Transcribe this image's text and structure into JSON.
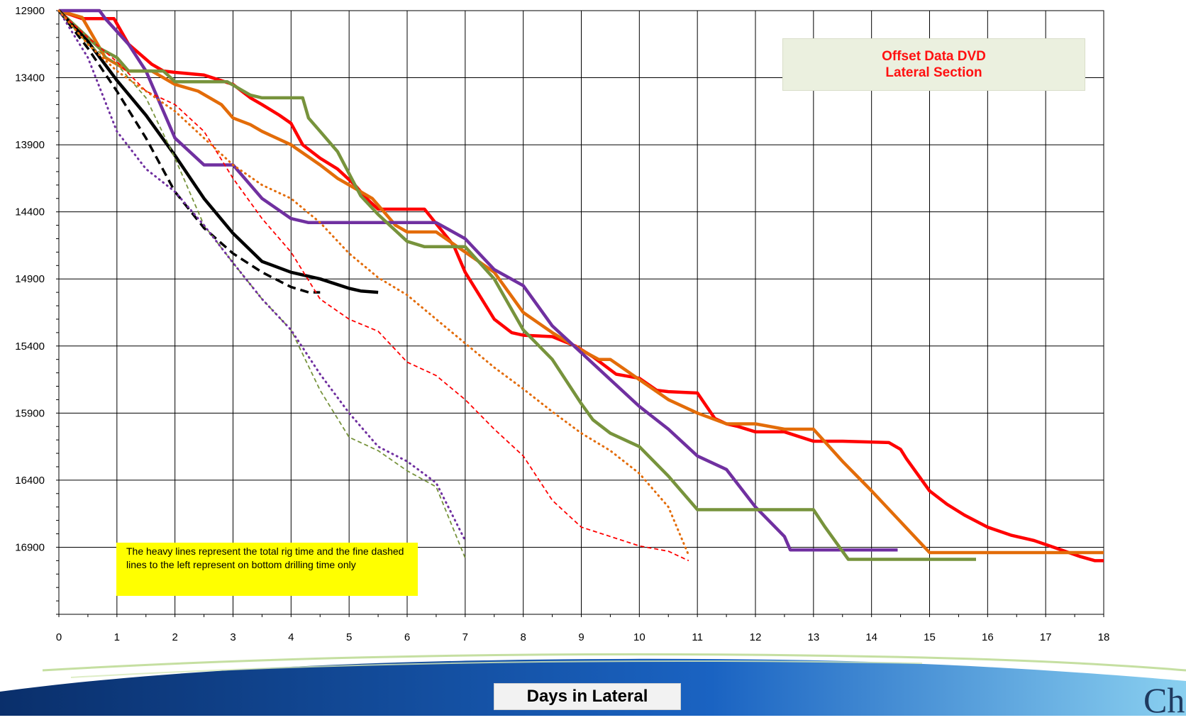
{
  "chart_data": {
    "type": "line",
    "title": "",
    "legend_title": [
      "Offset Data DVD",
      "Lateral Section"
    ],
    "xlabel": "Days in Lateral",
    "ylabel": "",
    "xlim": [
      0,
      18
    ],
    "ylim": [
      17400,
      12900
    ],
    "y_inverted": true,
    "x_ticks": [
      0,
      1,
      2,
      3,
      4,
      5,
      6,
      7,
      8,
      9,
      10,
      11,
      12,
      13,
      14,
      15,
      16,
      17,
      18
    ],
    "y_ticks": [
      12900,
      13400,
      13900,
      14400,
      14900,
      15400,
      15900,
      16400,
      16900
    ],
    "grid": true,
    "legend_position": "top-right",
    "annotation": "The heavy lines represent the total rig time and the fine dashed lines to the left represent on bottom drilling time only",
    "series": [
      {
        "color": "#ff0000",
        "style": "solid",
        "x": [
          0,
          0.4,
          0.95,
          1.2,
          1.6,
          1.8,
          2,
          2.5,
          3,
          3.3,
          3.5,
          3.8,
          4,
          4.2,
          4.5,
          4.8,
          5.1,
          5.3,
          5.5,
          6.3,
          6.8,
          7,
          7.5,
          7.8,
          8,
          8.5,
          8.9,
          9.2,
          9.6,
          10.0,
          10.3,
          10.5,
          11,
          11.3,
          11.5,
          11.7,
          12,
          12.5,
          13,
          13.5,
          14.3,
          14.5,
          14.6,
          15,
          15.3,
          15.6,
          16,
          16.4,
          16.8,
          17.2,
          17.6,
          17.85,
          18
        ],
        "y": [
          12900,
          12960,
          12960,
          13150,
          13300,
          13350,
          13360,
          13380,
          13450,
          13550,
          13600,
          13680,
          13740,
          13900,
          14000,
          14080,
          14200,
          14300,
          14380,
          14380,
          14650,
          14850,
          15200,
          15300,
          15320,
          15330,
          15400,
          15480,
          15610,
          15640,
          15730,
          15740,
          15750,
          15940,
          15980,
          16000,
          16040,
          16040,
          16110,
          16110,
          16120,
          16170,
          16240,
          16480,
          16580,
          16660,
          16750,
          16810,
          16850,
          16910,
          16970,
          17000,
          17000
        ]
      },
      {
        "color": "#e36c09",
        "style": "solid",
        "x": [
          0,
          0.4,
          0.8,
          1.2,
          1.6,
          2,
          2.4,
          2.8,
          3,
          3.3,
          3.5,
          4,
          4.5,
          4.8,
          5,
          5.4,
          5.5,
          5.8,
          6,
          6.5,
          7,
          7.5,
          8,
          8.5,
          9,
          9.3,
          9.5,
          10,
          10.5,
          11,
          11.5,
          12,
          12.5,
          13,
          13.5,
          14,
          14.5,
          15,
          18
        ],
        "y": [
          12900,
          12950,
          13250,
          13350,
          13350,
          13450,
          13500,
          13600,
          13700,
          13750,
          13800,
          13900,
          14050,
          14150,
          14200,
          14300,
          14350,
          14500,
          14550,
          14550,
          14700,
          14850,
          15150,
          15300,
          15430,
          15500,
          15500,
          15650,
          15800,
          15900,
          15980,
          15980,
          16020,
          16020,
          16260,
          16480,
          16710,
          16940,
          16940
        ]
      },
      {
        "color": "#7030a0",
        "style": "solid",
        "x": [
          0,
          0.7,
          0.8,
          1.2,
          1.5,
          2,
          2.5,
          3,
          3.1,
          3.5,
          4,
          4.3,
          5,
          5.5,
          6,
          6.5,
          7,
          7.5,
          8,
          8.5,
          9,
          9.5,
          10,
          10.5,
          11,
          11.5,
          12,
          12.5,
          12.6,
          13,
          14,
          14.45
        ],
        "y": [
          12900,
          12900,
          12960,
          13150,
          13350,
          13850,
          14050,
          14050,
          14100,
          14300,
          14450,
          14480,
          14480,
          14480,
          14480,
          14480,
          14600,
          14830,
          14950,
          15250,
          15450,
          15650,
          15850,
          16020,
          16220,
          16320,
          16600,
          16820,
          16920,
          16920,
          16920,
          16920
        ]
      },
      {
        "color": "#77933c",
        "style": "solid",
        "x": [
          0,
          0.7,
          1.0,
          1.2,
          1.5,
          1.8,
          2,
          2.5,
          2.9,
          3.1,
          3.3,
          3.5,
          4.2,
          4.3,
          4.5,
          4.8,
          5.2,
          5.5,
          6,
          6.3,
          7,
          7.5,
          8,
          8.5,
          9,
          9.2,
          9.5,
          10,
          10.5,
          11,
          11.5,
          12,
          13,
          13.2,
          13.6,
          14,
          15.8
        ],
        "y": [
          12900,
          13180,
          13250,
          13350,
          13350,
          13350,
          13430,
          13430,
          13430,
          13480,
          13530,
          13550,
          13550,
          13700,
          13800,
          13950,
          14280,
          14420,
          14620,
          14660,
          14660,
          14900,
          15280,
          15500,
          15830,
          15950,
          16050,
          16150,
          16370,
          16620,
          16620,
          16620,
          16620,
          16750,
          16990,
          16990,
          16990
        ]
      },
      {
        "color": "#000000",
        "style": "solid",
        "x": [
          0,
          0.5,
          1,
          1.5,
          2,
          2.5,
          3,
          3.5,
          4,
          4.5,
          5,
          5.2,
          5.5
        ],
        "y": [
          12900,
          13130,
          13420,
          13680,
          13980,
          14300,
          14560,
          14770,
          14850,
          14900,
          14970,
          14990,
          15000
        ]
      },
      {
        "color": "#000000",
        "style": "dashed",
        "x": [
          0,
          0.5,
          1,
          1.5,
          2,
          2.5,
          3,
          3.5,
          4,
          4.3,
          4.5
        ],
        "y": [
          12900,
          13180,
          13500,
          13850,
          14250,
          14520,
          14710,
          14850,
          14960,
          15000,
          15000
        ]
      },
      {
        "color": "#ff0000",
        "style": "dashed",
        "x": [
          0,
          0.5,
          1,
          1.5,
          2,
          2.5,
          3,
          3.5,
          4,
          4.5,
          5,
          5.5,
          6,
          6.5,
          7,
          7.5,
          8,
          8.5,
          9,
          9.5,
          10,
          10.5,
          10.85
        ],
        "y": [
          12900,
          13100,
          13280,
          13500,
          13600,
          13800,
          14150,
          14450,
          14700,
          15050,
          15200,
          15290,
          15520,
          15620,
          15800,
          16020,
          16220,
          16550,
          16750,
          16820,
          16890,
          16930,
          17000
        ]
      },
      {
        "color": "#77933c",
        "style": "dashed",
        "x": [
          0,
          0.5,
          1,
          1.5,
          2,
          2.5,
          3,
          3.5,
          4,
          4.5,
          5,
          5.5,
          6,
          6.5,
          7
        ],
        "y": [
          12900,
          13150,
          13300,
          13550,
          14000,
          14500,
          14780,
          15050,
          15280,
          15730,
          16080,
          16180,
          16330,
          16450,
          16980
        ]
      },
      {
        "color": "#7030a0",
        "style": "dotted",
        "x": [
          0,
          0.5,
          1,
          1.5,
          2,
          2.5,
          3,
          3.5,
          4,
          4.5,
          5,
          5.5,
          6,
          6.5,
          7
        ],
        "y": [
          12900,
          13250,
          13800,
          14080,
          14250,
          14500,
          14780,
          15050,
          15280,
          15610,
          15900,
          16150,
          16260,
          16420,
          16850
        ]
      },
      {
        "color": "#e36c09",
        "style": "dotted",
        "x": [
          0,
          0.5,
          1,
          1.5,
          2,
          2.5,
          3,
          3.5,
          4,
          4.5,
          5,
          5.5,
          6,
          6.5,
          7,
          7.5,
          8,
          8.5,
          9,
          9.5,
          10,
          10.5,
          10.85
        ],
        "y": [
          12900,
          13150,
          13350,
          13500,
          13650,
          13850,
          14050,
          14200,
          14300,
          14480,
          14710,
          14890,
          15020,
          15200,
          15380,
          15560,
          15720,
          15890,
          16050,
          16180,
          16350,
          16600,
          16960
        ]
      }
    ]
  }
}
